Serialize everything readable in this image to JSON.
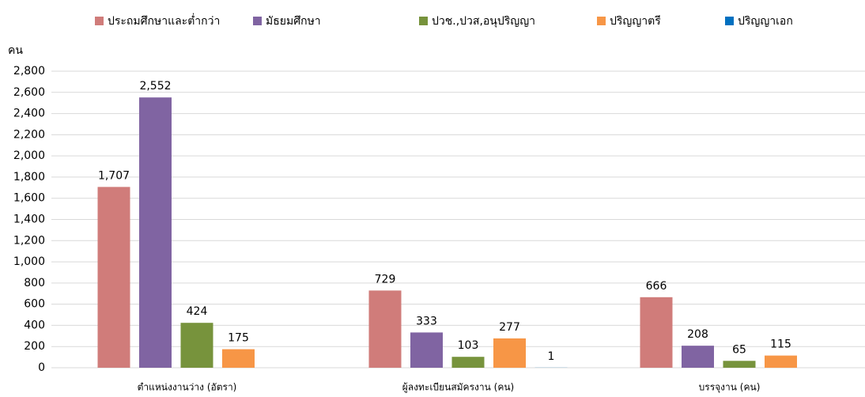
{
  "chart_data": {
    "type": "bar",
    "y_label": "คน",
    "categories": [
      "ตำแหน่งงานว่าง (อัตรา)",
      "ผู้ลงทะเบียนสมัครงาน (คน)",
      "บรรจุงาน (คน)"
    ],
    "series": [
      {
        "name": "ประถมศึกษาและต่ำกว่า",
        "color": "#d07c7a",
        "values": [
          1707,
          729,
          666
        ],
        "value_labels": [
          "1,707",
          null,
          null
        ]
      },
      {
        "name": "มัธยมศึกษา",
        "color": "#8064a2",
        "values": [
          2552,
          333,
          208
        ],
        "value_labels": [
          "2,552",
          null,
          null
        ]
      },
      {
        "name": "ปวช.,ปวส,อนุปริญญา",
        "color": "#77933c",
        "values": [
          424,
          103,
          65
        ]
      },
      {
        "name": "ปริญญาตรี",
        "color": "#f79646",
        "values": [
          175,
          277,
          115
        ]
      },
      {
        "name": "ปริญญาเอก",
        "color": "#0070c0",
        "values": [
          null,
          1,
          null
        ]
      }
    ],
    "ylim": [
      0,
      2800
    ],
    "yticks": [
      0,
      200,
      400,
      600,
      800,
      {
        "value": 1000,
        "label": "1,000"
      },
      {
        "value": 1200,
        "label": "1,200"
      },
      {
        "value": 1400,
        "label": "1,400"
      },
      {
        "value": 1600,
        "label": "1,600"
      },
      {
        "value": 1800,
        "label": "1,800"
      },
      {
        "value": 2000,
        "label": "2,000"
      },
      {
        "value": 2200,
        "label": "2,200"
      },
      {
        "value": 2400,
        "label": "2,400"
      },
      {
        "value": 2600,
        "label": "2,600"
      },
      {
        "value": 2800,
        "label": "2,800"
      }
    ],
    "grid": true,
    "legend": "top"
  }
}
